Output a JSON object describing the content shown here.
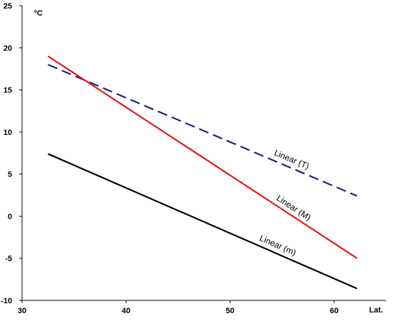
{
  "chart_data": {
    "type": "line",
    "title": "",
    "xlabel": "Lat.",
    "ylabel": "ºC",
    "xlim": [
      30,
      65
    ],
    "ylim": [
      -10,
      25
    ],
    "xticks": [
      30,
      40,
      50,
      60
    ],
    "yticks": [
      -10,
      -5,
      0,
      5,
      10,
      15,
      20,
      25
    ],
    "grid": false,
    "series": [
      {
        "name": "Linear (T)",
        "x": [
          32.5,
          62.2
        ],
        "y": [
          18.0,
          2.4
        ],
        "color": "#1a237e",
        "dash": "dashed"
      },
      {
        "name": "Linear (M)",
        "x": [
          32.5,
          62.2
        ],
        "y": [
          19.0,
          -5.0
        ],
        "color": "#e31a1c",
        "dash": "solid"
      },
      {
        "name": "Linear (m)",
        "x": [
          32.5,
          62.2
        ],
        "y": [
          7.4,
          -8.6
        ],
        "color": "#000000",
        "dash": "solid"
      }
    ]
  }
}
